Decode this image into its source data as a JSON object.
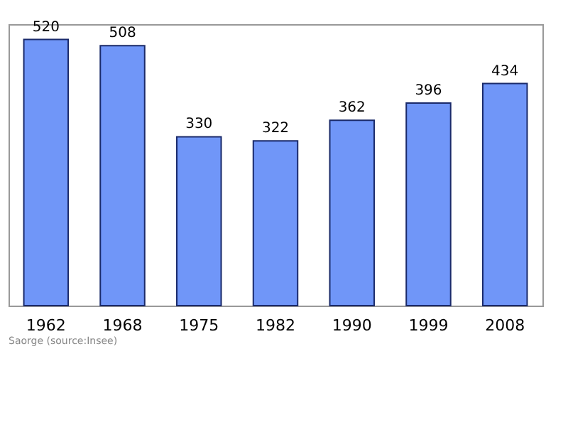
{
  "chart_data": {
    "type": "bar",
    "categories": [
      "1962",
      "1968",
      "1975",
      "1982",
      "1990",
      "1999",
      "2008"
    ],
    "values": [
      520,
      508,
      330,
      322,
      362,
      396,
      434
    ],
    "color": "#7096f8",
    "data_labels": true,
    "grid": false,
    "annotations": [
      "Saorge    (source:Insee)"
    ]
  }
}
